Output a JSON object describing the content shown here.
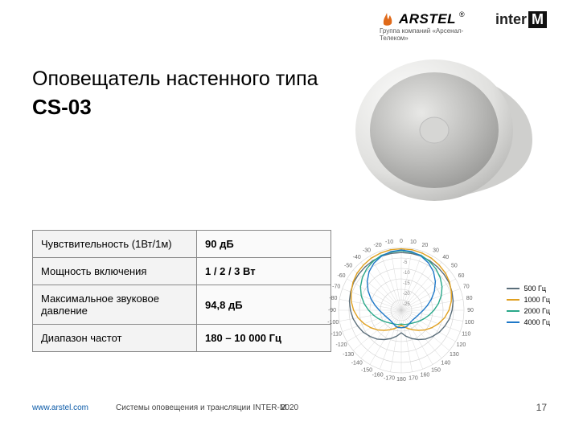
{
  "header": {
    "arstel_name": "ARSTEL",
    "arstel_sub": "Группа компаний «Арсенал-Телеком»",
    "register_mark": "®",
    "interm_inter": "inter",
    "interm_m": "M",
    "flame_color": "#e06a1a"
  },
  "title": {
    "line": "Оповещатель настенного типа",
    "model": "CS-03"
  },
  "specs": {
    "rows": [
      {
        "label": "Чувствительность (1Вт/1м)",
        "value": "90 дБ"
      },
      {
        "label": "Мощность включения",
        "value": "1 / 2 / 3 Вт"
      },
      {
        "label": "Максимальное звуковое давление",
        "value": "94,8 дБ"
      },
      {
        "label": "Диапазон частот",
        "value": "180 – 10 000 Гц"
      }
    ]
  },
  "product": {
    "rim_color": "#d7d7d5",
    "grille_color": "#b9b8b6",
    "center_color": "#d0d0ce",
    "shadow_color": "#c9c9c7"
  },
  "polar": {
    "type": "polar",
    "n_rings": 6,
    "ring_color": "#cfcfcf",
    "spoke_color": "#cfcfcf",
    "background_color": "#ffffff",
    "axis_range_deg": [
      -180,
      180
    ],
    "angle_labels": [
      "0",
      "10",
      "20",
      "30",
      "40",
      "50",
      "60",
      "70",
      "80",
      "90",
      "100",
      "110",
      "120",
      "130",
      "140",
      "150",
      "160",
      "170",
      "180",
      "-170",
      "-160",
      "-150",
      "-140",
      "-130",
      "-120",
      "-110",
      "-100",
      "-90",
      "-80",
      "-70",
      "-60",
      "-50",
      "-40",
      "-30",
      "-20",
      "-10"
    ],
    "db_labels": [
      "0",
      "-5",
      "-10",
      "-15",
      "-20",
      "-25"
    ],
    "label_fontsize": 7,
    "series": [
      {
        "name": "500 Гц",
        "color": "#5b6e7a",
        "r": [
          0.92,
          0.92,
          0.92,
          0.91,
          0.9,
          0.89,
          0.88,
          0.86,
          0.84,
          0.81,
          0.78,
          0.74,
          0.7,
          0.65,
          0.6,
          0.54,
          0.48,
          0.42,
          0.36,
          0.42,
          0.48,
          0.54,
          0.6,
          0.65,
          0.7,
          0.74,
          0.78,
          0.81,
          0.84,
          0.86,
          0.88,
          0.89,
          0.9,
          0.91,
          0.92,
          0.92
        ]
      },
      {
        "name": "1000 Гц",
        "color": "#e0a020",
        "r": [
          0.98,
          0.98,
          0.97,
          0.96,
          0.94,
          0.92,
          0.89,
          0.85,
          0.81,
          0.76,
          0.7,
          0.63,
          0.56,
          0.49,
          0.42,
          0.36,
          0.31,
          0.27,
          0.24,
          0.27,
          0.31,
          0.36,
          0.42,
          0.49,
          0.56,
          0.63,
          0.7,
          0.76,
          0.81,
          0.85,
          0.89,
          0.92,
          0.94,
          0.96,
          0.97,
          0.98
        ]
      },
      {
        "name": "2000 Гц",
        "color": "#2aa88a",
        "r": [
          0.95,
          0.94,
          0.93,
          0.9,
          0.86,
          0.81,
          0.75,
          0.68,
          0.6,
          0.52,
          0.45,
          0.39,
          0.34,
          0.3,
          0.27,
          0.25,
          0.24,
          0.23,
          0.22,
          0.23,
          0.24,
          0.25,
          0.27,
          0.3,
          0.34,
          0.39,
          0.45,
          0.52,
          0.6,
          0.68,
          0.75,
          0.81,
          0.86,
          0.9,
          0.93,
          0.94
        ]
      },
      {
        "name": "4000 Гц",
        "color": "#1e78c8",
        "r": [
          0.96,
          0.95,
          0.92,
          0.87,
          0.8,
          0.71,
          0.61,
          0.51,
          0.42,
          0.35,
          0.3,
          0.27,
          0.25,
          0.24,
          0.24,
          0.25,
          0.27,
          0.28,
          0.28,
          0.28,
          0.27,
          0.25,
          0.24,
          0.24,
          0.25,
          0.27,
          0.3,
          0.35,
          0.42,
          0.51,
          0.61,
          0.71,
          0.8,
          0.87,
          0.92,
          0.95
        ]
      }
    ]
  },
  "footer": {
    "url": "www.arstel.com",
    "mid": "Системы оповещения и трансляции INTER-M",
    "year": "2020",
    "page": "17"
  }
}
